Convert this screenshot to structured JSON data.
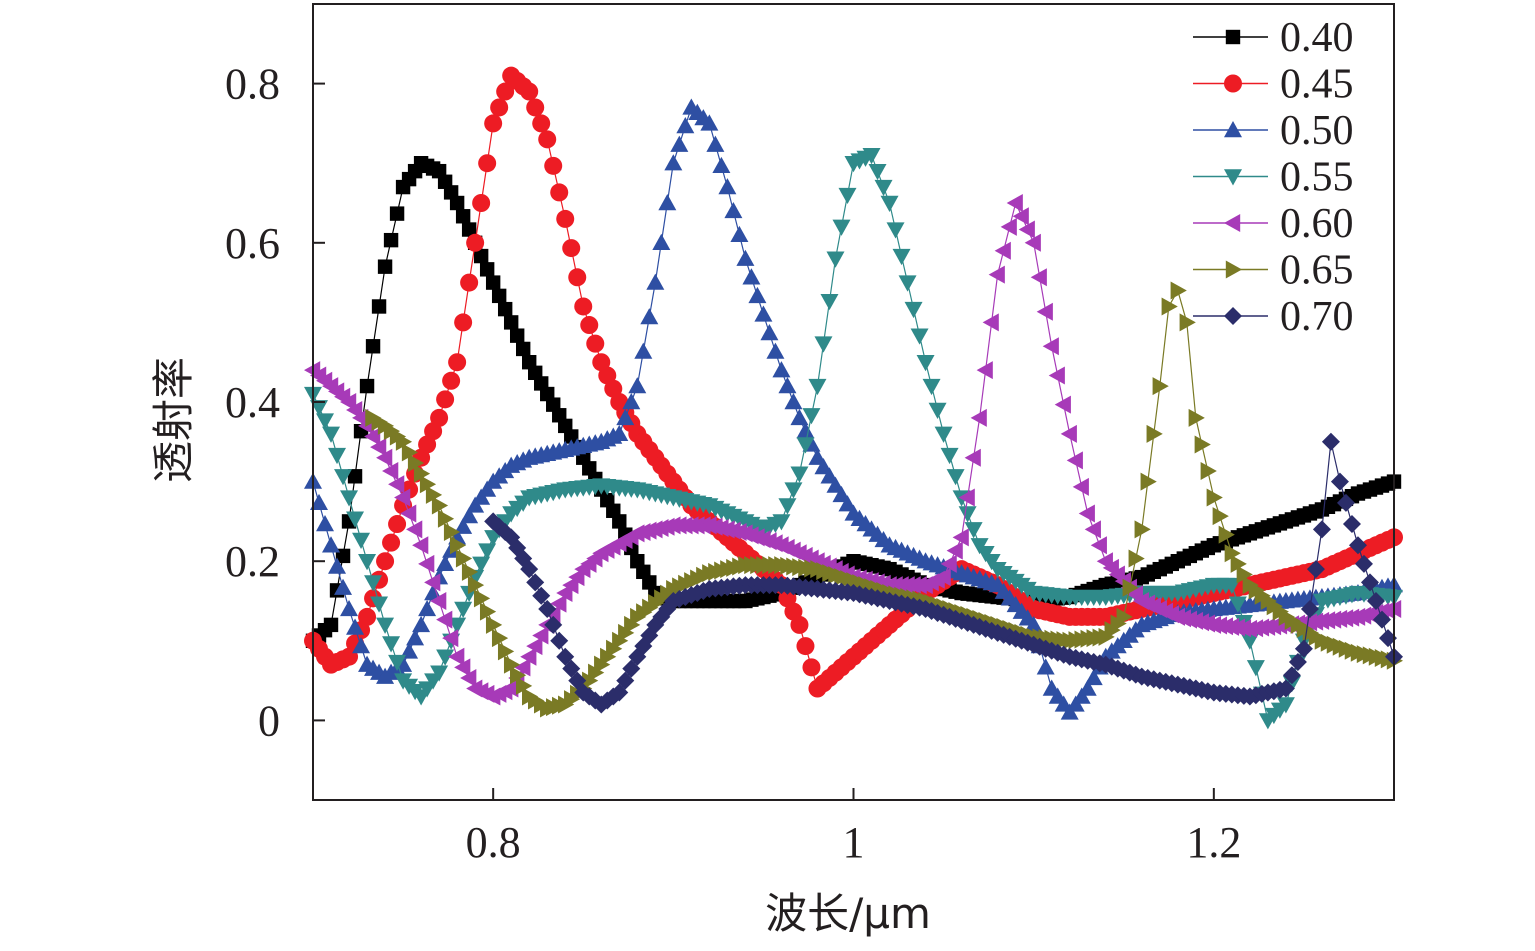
{
  "chart_data": {
    "type": "line",
    "title": "",
    "xlabel": "波长/μm",
    "ylabel": "透射率",
    "xlim": [
      0.7,
      1.3
    ],
    "ylim": [
      -0.1,
      0.9
    ],
    "x_ticks": [
      {
        "value": 0.8,
        "label": "0.8"
      },
      {
        "value": 1.0,
        "label": "1"
      },
      {
        "value": 1.2,
        "label": "1.2"
      }
    ],
    "y_ticks": [
      {
        "value": 0.0,
        "label": "0"
      },
      {
        "value": 0.2,
        "label": "0.2"
      },
      {
        "value": 0.4,
        "label": "0.4"
      },
      {
        "value": 0.6,
        "label": "0.6"
      },
      {
        "value": 0.8,
        "label": "0.8"
      }
    ],
    "grid": false,
    "legend_position": "top-right",
    "series": [
      {
        "name": "0.40",
        "color": "#000000",
        "marker": "square",
        "points": [
          [
            0.7,
            0.1
          ],
          [
            0.71,
            0.12
          ],
          [
            0.72,
            0.25
          ],
          [
            0.73,
            0.42
          ],
          [
            0.74,
            0.57
          ],
          [
            0.75,
            0.67
          ],
          [
            0.76,
            0.7
          ],
          [
            0.77,
            0.69
          ],
          [
            0.78,
            0.65
          ],
          [
            0.79,
            0.6
          ],
          [
            0.8,
            0.55
          ],
          [
            0.81,
            0.5
          ],
          [
            0.82,
            0.45
          ],
          [
            0.83,
            0.41
          ],
          [
            0.84,
            0.37
          ],
          [
            0.85,
            0.33
          ],
          [
            0.86,
            0.29
          ],
          [
            0.87,
            0.25
          ],
          [
            0.88,
            0.2
          ],
          [
            0.89,
            0.16
          ],
          [
            0.9,
            0.15
          ],
          [
            0.92,
            0.15
          ],
          [
            0.94,
            0.15
          ],
          [
            0.96,
            0.16
          ],
          [
            0.98,
            0.18
          ],
          [
            1.0,
            0.2
          ],
          [
            1.02,
            0.19
          ],
          [
            1.04,
            0.17
          ],
          [
            1.06,
            0.16
          ],
          [
            1.08,
            0.155
          ],
          [
            1.1,
            0.15
          ],
          [
            1.12,
            0.155
          ],
          [
            1.14,
            0.17
          ],
          [
            1.16,
            0.18
          ],
          [
            1.18,
            0.2
          ],
          [
            1.2,
            0.22
          ],
          [
            1.22,
            0.235
          ],
          [
            1.24,
            0.25
          ],
          [
            1.26,
            0.265
          ],
          [
            1.28,
            0.285
          ],
          [
            1.3,
            0.3
          ]
        ]
      },
      {
        "name": "0.45",
        "color": "#ed1c24",
        "marker": "circle",
        "points": [
          [
            0.7,
            0.1
          ],
          [
            0.71,
            0.07
          ],
          [
            0.72,
            0.08
          ],
          [
            0.73,
            0.13
          ],
          [
            0.74,
            0.2
          ],
          [
            0.75,
            0.27
          ],
          [
            0.76,
            0.33
          ],
          [
            0.77,
            0.38
          ],
          [
            0.78,
            0.45
          ],
          [
            0.79,
            0.6
          ],
          [
            0.8,
            0.75
          ],
          [
            0.81,
            0.81
          ],
          [
            0.82,
            0.79
          ],
          [
            0.83,
            0.73
          ],
          [
            0.84,
            0.63
          ],
          [
            0.85,
            0.52
          ],
          [
            0.86,
            0.45
          ],
          [
            0.87,
            0.4
          ],
          [
            0.88,
            0.36
          ],
          [
            0.89,
            0.33
          ],
          [
            0.9,
            0.3
          ],
          [
            0.91,
            0.27
          ],
          [
            0.92,
            0.25
          ],
          [
            0.93,
            0.23
          ],
          [
            0.94,
            0.21
          ],
          [
            0.95,
            0.19
          ],
          [
            0.96,
            0.17
          ],
          [
            0.97,
            0.12
          ],
          [
            0.98,
            0.04
          ],
          [
            0.99,
            0.06
          ],
          [
            1.0,
            0.08
          ],
          [
            1.02,
            0.12
          ],
          [
            1.04,
            0.16
          ],
          [
            1.06,
            0.19
          ],
          [
            1.08,
            0.17
          ],
          [
            1.1,
            0.14
          ],
          [
            1.12,
            0.13
          ],
          [
            1.14,
            0.13
          ],
          [
            1.16,
            0.14
          ],
          [
            1.18,
            0.15
          ],
          [
            1.2,
            0.16
          ],
          [
            1.22,
            0.17
          ],
          [
            1.24,
            0.18
          ],
          [
            1.26,
            0.19
          ],
          [
            1.28,
            0.21
          ],
          [
            1.3,
            0.23
          ]
        ]
      },
      {
        "name": "0.50",
        "color": "#2e4fa3",
        "marker": "triangle-up",
        "points": [
          [
            0.7,
            0.3
          ],
          [
            0.71,
            0.22
          ],
          [
            0.72,
            0.14
          ],
          [
            0.73,
            0.07
          ],
          [
            0.74,
            0.055
          ],
          [
            0.75,
            0.07
          ],
          [
            0.76,
            0.12
          ],
          [
            0.77,
            0.18
          ],
          [
            0.78,
            0.23
          ],
          [
            0.79,
            0.27
          ],
          [
            0.8,
            0.3
          ],
          [
            0.81,
            0.32
          ],
          [
            0.82,
            0.33
          ],
          [
            0.84,
            0.34
          ],
          [
            0.86,
            0.35
          ],
          [
            0.87,
            0.36
          ],
          [
            0.88,
            0.42
          ],
          [
            0.89,
            0.55
          ],
          [
            0.9,
            0.7
          ],
          [
            0.91,
            0.77
          ],
          [
            0.92,
            0.75
          ],
          [
            0.93,
            0.67
          ],
          [
            0.94,
            0.58
          ],
          [
            0.95,
            0.51
          ],
          [
            0.96,
            0.44
          ],
          [
            0.97,
            0.38
          ],
          [
            0.98,
            0.33
          ],
          [
            1.0,
            0.26
          ],
          [
            1.02,
            0.22
          ],
          [
            1.04,
            0.2
          ],
          [
            1.06,
            0.185
          ],
          [
            1.08,
            0.17
          ],
          [
            1.1,
            0.12
          ],
          [
            1.11,
            0.04
          ],
          [
            1.12,
            0.01
          ],
          [
            1.13,
            0.04
          ],
          [
            1.14,
            0.08
          ],
          [
            1.16,
            0.12
          ],
          [
            1.18,
            0.135
          ],
          [
            1.2,
            0.14
          ],
          [
            1.22,
            0.145
          ],
          [
            1.24,
            0.15
          ],
          [
            1.26,
            0.155
          ],
          [
            1.28,
            0.16
          ],
          [
            1.3,
            0.17
          ]
        ]
      },
      {
        "name": "0.55",
        "color": "#2f8a8a",
        "marker": "triangle-down",
        "points": [
          [
            0.7,
            0.41
          ],
          [
            0.71,
            0.36
          ],
          [
            0.72,
            0.28
          ],
          [
            0.73,
            0.2
          ],
          [
            0.74,
            0.12
          ],
          [
            0.75,
            0.05
          ],
          [
            0.76,
            0.03
          ],
          [
            0.77,
            0.06
          ],
          [
            0.78,
            0.12
          ],
          [
            0.79,
            0.18
          ],
          [
            0.8,
            0.23
          ],
          [
            0.81,
            0.26
          ],
          [
            0.82,
            0.28
          ],
          [
            0.84,
            0.29
          ],
          [
            0.86,
            0.295
          ],
          [
            0.88,
            0.29
          ],
          [
            0.9,
            0.28
          ],
          [
            0.92,
            0.27
          ],
          [
            0.94,
            0.25
          ],
          [
            0.95,
            0.24
          ],
          [
            0.96,
            0.25
          ],
          [
            0.97,
            0.31
          ],
          [
            0.98,
            0.42
          ],
          [
            0.99,
            0.58
          ],
          [
            1.0,
            0.7
          ],
          [
            1.01,
            0.71
          ],
          [
            1.02,
            0.65
          ],
          [
            1.03,
            0.55
          ],
          [
            1.04,
            0.45
          ],
          [
            1.05,
            0.36
          ],
          [
            1.06,
            0.28
          ],
          [
            1.07,
            0.22
          ],
          [
            1.08,
            0.19
          ],
          [
            1.1,
            0.16
          ],
          [
            1.12,
            0.155
          ],
          [
            1.14,
            0.155
          ],
          [
            1.16,
            0.16
          ],
          [
            1.18,
            0.16
          ],
          [
            1.2,
            0.17
          ],
          [
            1.21,
            0.17
          ],
          [
            1.22,
            0.1
          ],
          [
            1.23,
            0.0
          ],
          [
            1.24,
            0.02
          ],
          [
            1.25,
            0.1
          ],
          [
            1.26,
            0.15
          ],
          [
            1.28,
            0.16
          ],
          [
            1.3,
            0.155
          ]
        ]
      },
      {
        "name": "0.60",
        "color": "#a73ab8",
        "marker": "triangle-left",
        "points": [
          [
            0.7,
            0.44
          ],
          [
            0.71,
            0.42
          ],
          [
            0.72,
            0.4
          ],
          [
            0.73,
            0.37
          ],
          [
            0.74,
            0.33
          ],
          [
            0.75,
            0.28
          ],
          [
            0.76,
            0.22
          ],
          [
            0.77,
            0.15
          ],
          [
            0.78,
            0.08
          ],
          [
            0.79,
            0.04
          ],
          [
            0.8,
            0.03
          ],
          [
            0.81,
            0.04
          ],
          [
            0.82,
            0.08
          ],
          [
            0.83,
            0.12
          ],
          [
            0.84,
            0.16
          ],
          [
            0.85,
            0.19
          ],
          [
            0.86,
            0.21
          ],
          [
            0.88,
            0.235
          ],
          [
            0.9,
            0.245
          ],
          [
            0.92,
            0.245
          ],
          [
            0.94,
            0.235
          ],
          [
            0.96,
            0.22
          ],
          [
            0.98,
            0.2
          ],
          [
            1.0,
            0.18
          ],
          [
            1.02,
            0.17
          ],
          [
            1.04,
            0.17
          ],
          [
            1.05,
            0.18
          ],
          [
            1.06,
            0.23
          ],
          [
            1.07,
            0.38
          ],
          [
            1.08,
            0.56
          ],
          [
            1.09,
            0.65
          ],
          [
            1.1,
            0.6
          ],
          [
            1.11,
            0.47
          ],
          [
            1.12,
            0.36
          ],
          [
            1.13,
            0.26
          ],
          [
            1.14,
            0.2
          ],
          [
            1.16,
            0.15
          ],
          [
            1.18,
            0.13
          ],
          [
            1.2,
            0.12
          ],
          [
            1.22,
            0.115
          ],
          [
            1.24,
            0.12
          ],
          [
            1.26,
            0.125
          ],
          [
            1.28,
            0.13
          ],
          [
            1.3,
            0.14
          ]
        ]
      },
      {
        "name": "0.65",
        "color": "#7a7a25",
        "marker": "triangle-right",
        "points": [
          [
            0.733,
            0.38
          ],
          [
            0.74,
            0.37
          ],
          [
            0.75,
            0.35
          ],
          [
            0.76,
            0.31
          ],
          [
            0.77,
            0.27
          ],
          [
            0.78,
            0.22
          ],
          [
            0.79,
            0.17
          ],
          [
            0.8,
            0.12
          ],
          [
            0.81,
            0.07
          ],
          [
            0.82,
            0.03
          ],
          [
            0.83,
            0.015
          ],
          [
            0.84,
            0.02
          ],
          [
            0.85,
            0.04
          ],
          [
            0.86,
            0.07
          ],
          [
            0.87,
            0.1
          ],
          [
            0.88,
            0.13
          ],
          [
            0.9,
            0.165
          ],
          [
            0.92,
            0.185
          ],
          [
            0.94,
            0.195
          ],
          [
            0.96,
            0.195
          ],
          [
            0.98,
            0.19
          ],
          [
            1.0,
            0.175
          ],
          [
            1.02,
            0.16
          ],
          [
            1.04,
            0.15
          ],
          [
            1.06,
            0.135
          ],
          [
            1.08,
            0.12
          ],
          [
            1.1,
            0.105
          ],
          [
            1.12,
            0.1
          ],
          [
            1.14,
            0.105
          ],
          [
            1.15,
            0.13
          ],
          [
            1.16,
            0.24
          ],
          [
            1.17,
            0.42
          ],
          [
            1.175,
            0.52
          ],
          [
            1.18,
            0.54
          ],
          [
            1.185,
            0.5
          ],
          [
            1.19,
            0.38
          ],
          [
            1.2,
            0.28
          ],
          [
            1.21,
            0.21
          ],
          [
            1.22,
            0.17
          ],
          [
            1.24,
            0.13
          ],
          [
            1.26,
            0.1
          ],
          [
            1.28,
            0.085
          ],
          [
            1.3,
            0.075
          ]
        ]
      },
      {
        "name": "0.70",
        "color": "#2b2d6a",
        "marker": "diamond",
        "points": [
          [
            0.8,
            0.25
          ],
          [
            0.81,
            0.23
          ],
          [
            0.82,
            0.19
          ],
          [
            0.83,
            0.14
          ],
          [
            0.84,
            0.08
          ],
          [
            0.85,
            0.035
          ],
          [
            0.86,
            0.02
          ],
          [
            0.87,
            0.035
          ],
          [
            0.88,
            0.08
          ],
          [
            0.89,
            0.12
          ],
          [
            0.9,
            0.15
          ],
          [
            0.92,
            0.165
          ],
          [
            0.94,
            0.17
          ],
          [
            0.96,
            0.17
          ],
          [
            0.98,
            0.165
          ],
          [
            1.0,
            0.16
          ],
          [
            1.02,
            0.15
          ],
          [
            1.04,
            0.14
          ],
          [
            1.06,
            0.125
          ],
          [
            1.08,
            0.11
          ],
          [
            1.1,
            0.095
          ],
          [
            1.12,
            0.08
          ],
          [
            1.14,
            0.07
          ],
          [
            1.16,
            0.055
          ],
          [
            1.18,
            0.045
          ],
          [
            1.2,
            0.035
          ],
          [
            1.22,
            0.03
          ],
          [
            1.24,
            0.04
          ],
          [
            1.25,
            0.09
          ],
          [
            1.26,
            0.24
          ],
          [
            1.265,
            0.35
          ],
          [
            1.27,
            0.3
          ],
          [
            1.28,
            0.22
          ],
          [
            1.29,
            0.15
          ],
          [
            1.3,
            0.08
          ]
        ]
      }
    ]
  }
}
